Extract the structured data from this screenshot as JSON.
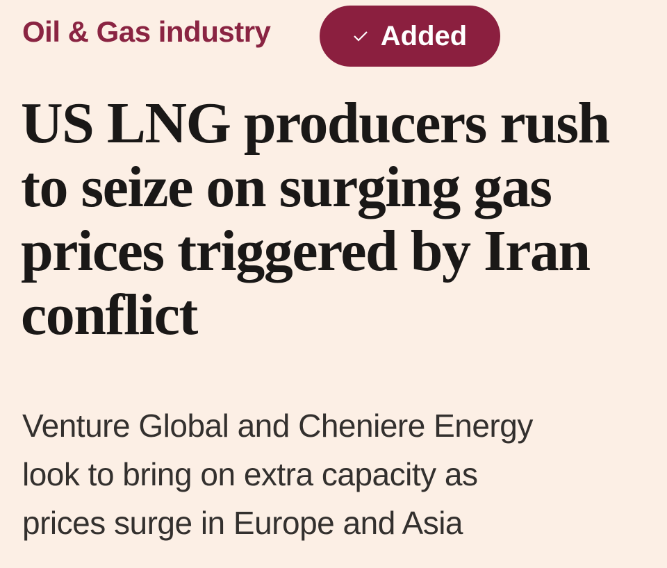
{
  "topic": "Oil & Gas industry",
  "follow_button": "Added",
  "headline": [
    "US LNG producers rush",
    "to seize on surging gas",
    "prices triggered by Iran",
    "conflict"
  ],
  "standfirst": [
    "Venture Global and Cheniere Energy",
    "look to bring on extra capacity as",
    "prices surge in Europe and Asia"
  ]
}
